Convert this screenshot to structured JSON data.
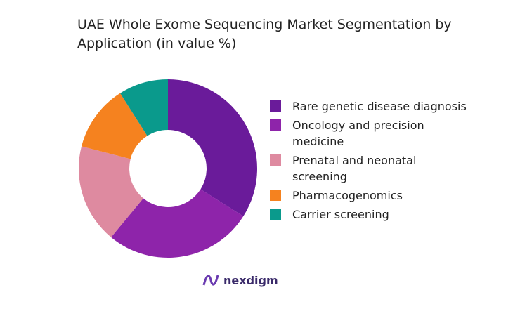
{
  "chart_data": {
    "type": "donut",
    "title": "UAE Whole Exome Sequencing Market Segmentation by Application (in value %)",
    "categories": [
      "Rare genetic disease diagnosis",
      "Oncology and precision medicine",
      "Prenatal and neonatal screening",
      "Pharmacogenomics",
      "Carrier screening"
    ],
    "values": [
      34,
      27,
      18,
      12,
      9
    ],
    "colors": [
      "#6a1b9a",
      "#8e24aa",
      "#de8aa0",
      "#f5821f",
      "#0a9a8c"
    ],
    "legend": "right"
  },
  "brand": "nexdigm"
}
